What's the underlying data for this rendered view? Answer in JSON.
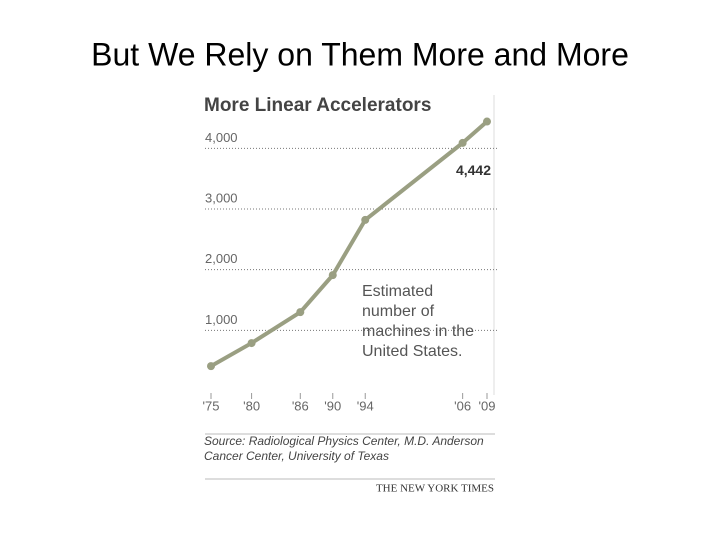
{
  "title": "But We Rely on Them More and More",
  "chart_data": {
    "type": "line",
    "title": "More Linear Accelerators",
    "x": [
      1975,
      1980,
      1986,
      1990,
      1994,
      2006,
      2009
    ],
    "series": [
      {
        "name": "Estimated number of machines in the United States.",
        "color": "#9a9f82",
        "values": [
          410,
          790,
          1300,
          1910,
          2820,
          4090,
          4442
        ],
        "value_labels": [
          null,
          null,
          null,
          null,
          null,
          null,
          "4,442"
        ]
      }
    ],
    "annotation": [
      "Estimated",
      "number of",
      "machines in the",
      "United States."
    ],
    "xlim": [
      1975,
      2009
    ],
    "xticks": [
      {
        "value": 1975,
        "label": "'75"
      },
      {
        "value": 1980,
        "label": "'80"
      },
      {
        "value": 1986,
        "label": "'86"
      },
      {
        "value": 1990,
        "label": "'90"
      },
      {
        "value": 1994,
        "label": "'94"
      },
      {
        "value": 2006,
        "label": "'06"
      },
      {
        "value": 2009,
        "label": "'09"
      }
    ],
    "ylim": [
      0,
      4500
    ],
    "yticks": [
      {
        "value": 1000,
        "label": "1,000"
      },
      {
        "value": 2000,
        "label": "2,000"
      },
      {
        "value": 3000,
        "label": "3,000"
      },
      {
        "value": 4000,
        "label": "4,000"
      }
    ],
    "grid": true,
    "source": [
      "Source: Radiological Physics Center, M.D. Anderson",
      "Cancer Center, University of Texas"
    ],
    "credit": "THE NEW YORK TIMES"
  }
}
